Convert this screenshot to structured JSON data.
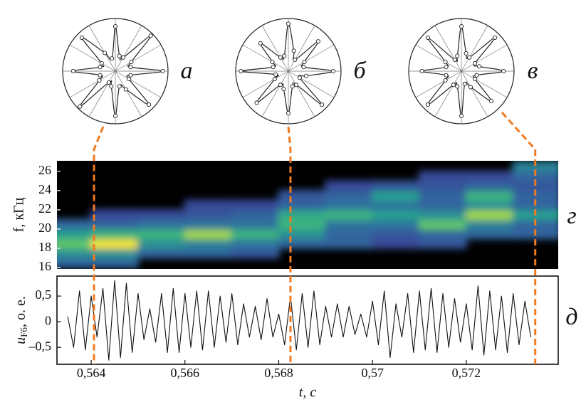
{
  "chart_data": [
    {
      "type": "polar",
      "label": "а",
      "rlim": [
        0,
        1
      ],
      "color": "#222",
      "thetaticks": [
        0,
        30,
        60,
        90,
        120,
        150,
        180,
        210,
        240,
        270,
        300,
        330
      ],
      "theta": [
        0,
        15,
        30,
        45,
        60,
        75,
        90,
        105,
        120,
        135,
        150,
        165,
        180,
        195,
        210,
        225,
        240,
        255,
        270,
        285,
        300,
        315,
        330,
        345
      ],
      "values": [
        0.9,
        0.3,
        0.35,
        0.95,
        0.3,
        0.3,
        0.85,
        0.25,
        0.4,
        0.9,
        0.3,
        0.3,
        0.8,
        0.3,
        0.35,
        0.95,
        0.25,
        0.3,
        0.85,
        0.3,
        0.4,
        0.9,
        0.3,
        0.3
      ]
    },
    {
      "type": "polar",
      "label": "б",
      "rlim": [
        0,
        1
      ],
      "color": "#222",
      "thetaticks": [
        0,
        30,
        60,
        90,
        120,
        150,
        180,
        210,
        240,
        270,
        300,
        330
      ],
      "theta": [
        0,
        15,
        30,
        45,
        60,
        75,
        90,
        105,
        120,
        135,
        150,
        165,
        180,
        195,
        210,
        225,
        240,
        255,
        270,
        285,
        300,
        315,
        330,
        345
      ],
      "values": [
        0.85,
        0.3,
        0.35,
        0.8,
        0.25,
        0.4,
        0.9,
        0.3,
        0.3,
        0.75,
        0.35,
        0.3,
        0.9,
        0.25,
        0.3,
        0.85,
        0.3,
        0.35,
        0.8,
        0.3,
        0.3,
        0.9,
        0.25,
        0.35
      ]
    },
    {
      "type": "polar",
      "label": "в",
      "rlim": [
        0,
        1
      ],
      "color": "#222",
      "thetaticks": [
        0,
        30,
        60,
        90,
        120,
        150,
        180,
        210,
        240,
        270,
        300,
        330
      ],
      "theta": [
        0,
        15,
        30,
        45,
        60,
        75,
        90,
        105,
        120,
        135,
        150,
        165,
        180,
        195,
        210,
        225,
        240,
        255,
        270,
        285,
        300,
        315,
        330,
        345
      ],
      "values": [
        0.8,
        0.35,
        0.3,
        0.9,
        0.3,
        0.35,
        0.85,
        0.3,
        0.25,
        0.9,
        0.35,
        0.3,
        0.75,
        0.3,
        0.35,
        0.9,
        0.3,
        0.3,
        0.85,
        0.25,
        0.35,
        0.8,
        0.3,
        0.3
      ]
    },
    {
      "type": "heatmap",
      "label": "г",
      "ylabel": "f, кГц",
      "xlim": [
        0.56327,
        0.57396
      ],
      "ylim": [
        15.85,
        27.1
      ],
      "yticks": [
        16,
        18,
        20,
        22,
        24,
        26
      ],
      "x": [
        0.5635,
        0.5645,
        0.5655,
        0.5665,
        0.5675,
        0.5685,
        0.5695,
        0.5705,
        0.5715,
        0.5725,
        0.5735
      ],
      "y": [
        16.5,
        17.5,
        18.5,
        19.5,
        20.5,
        21.5,
        22.5,
        23.5,
        24.5,
        25.5,
        26.5
      ],
      "z": [
        [
          0.3,
          0.3,
          null,
          null,
          null,
          null,
          null,
          null,
          null,
          null,
          null
        ],
        [
          0.45,
          0.45,
          0.3,
          0.3,
          0.25,
          null,
          null,
          null,
          null,
          null,
          null
        ],
        [
          0.7,
          1.0,
          0.45,
          0.4,
          0.35,
          0.3,
          0.3,
          0.2,
          0.25,
          null,
          null
        ],
        [
          0.5,
          0.6,
          0.6,
          0.8,
          0.6,
          0.45,
          0.3,
          0.25,
          0.3,
          0.3,
          0.3
        ],
        [
          0.3,
          0.3,
          0.35,
          0.35,
          0.35,
          0.6,
          0.35,
          0.35,
          0.7,
          0.4,
          0.3
        ],
        [
          null,
          0.2,
          0.2,
          0.25,
          0.3,
          0.55,
          0.6,
          0.5,
          0.45,
          0.8,
          0.5
        ],
        [
          null,
          null,
          null,
          0.2,
          0.2,
          0.3,
          0.35,
          0.35,
          0.3,
          0.45,
          0.3
        ],
        [
          null,
          null,
          null,
          null,
          null,
          0.25,
          0.3,
          0.5,
          0.3,
          0.6,
          0.3
        ],
        [
          null,
          null,
          null,
          null,
          null,
          null,
          0.2,
          0.25,
          0.25,
          0.3,
          0.25
        ],
        [
          null,
          null,
          null,
          null,
          null,
          null,
          null,
          null,
          0.2,
          0.2,
          0.3
        ],
        [
          null,
          null,
          null,
          null,
          null,
          null,
          null,
          null,
          null,
          null,
          0.4
        ]
      ],
      "zlim": [
        0,
        1
      ],
      "colormap": [
        "#3a1466",
        "#3b3f96",
        "#2f6fa0",
        "#27a08f",
        "#4cc172",
        "#b6dc3c",
        "#f4e52a"
      ],
      "background": "#000000"
    },
    {
      "type": "line",
      "label": "д",
      "ylabel": {
        "main": "u",
        "sub": "Fб",
        "rest": ", о. е."
      },
      "xlabel": "t, с",
      "xlim": [
        0.56327,
        0.57396
      ],
      "ylim": [
        -0.83,
        0.89
      ],
      "yticks": [
        {
          "value": 0.5,
          "label": "0,5"
        },
        0,
        {
          "value": -0.5,
          "label": "–0,5"
        }
      ],
      "xticks": [
        {
          "value": 0.564,
          "label": "0,564"
        },
        {
          "value": 0.566,
          "label": "0,566"
        },
        {
          "value": 0.568,
          "label": "0,568"
        },
        {
          "value": 0.57,
          "label": "0,57"
        },
        {
          "value": 0.572,
          "label": "0,572"
        }
      ],
      "color": "#111",
      "x": [
        0.5635,
        0.563625,
        0.56375,
        0.563875,
        0.564,
        0.564125,
        0.56425,
        0.564375,
        0.5645,
        0.564625,
        0.56475,
        0.564875,
        0.565,
        0.565125,
        0.56525,
        0.565375,
        0.5655,
        0.565625,
        0.56575,
        0.565875,
        0.566,
        0.566125,
        0.56625,
        0.566375,
        0.5665,
        0.566625,
        0.56675,
        0.566875,
        0.567,
        0.567125,
        0.56725,
        0.567375,
        0.5675,
        0.567625,
        0.56775,
        0.567875,
        0.568,
        0.568125,
        0.56825,
        0.568375,
        0.5685,
        0.568625,
        0.56875,
        0.568875,
        0.569,
        0.569125,
        0.56925,
        0.569375,
        0.5695,
        0.569625,
        0.56975,
        0.569875,
        0.57,
        0.570125,
        0.57025,
        0.570375,
        0.5705,
        0.570625,
        0.57075,
        0.570875,
        0.571,
        0.571125,
        0.57125,
        0.571375,
        0.5715,
        0.571625,
        0.57175,
        0.571875,
        0.572,
        0.572125,
        0.57225,
        0.572375,
        0.5725,
        0.572625,
        0.57275,
        0.572875,
        0.573,
        0.573125,
        0.57325,
        0.573375
      ],
      "values": [
        0.1,
        -0.5,
        0.6,
        -0.55,
        0.5,
        -0.3,
        0.65,
        -0.75,
        0.8,
        -0.7,
        0.75,
        -0.6,
        0.55,
        -0.35,
        0.25,
        -0.4,
        0.55,
        -0.6,
        0.65,
        -0.6,
        0.55,
        -0.5,
        0.6,
        -0.55,
        0.6,
        -0.5,
        0.5,
        -0.4,
        0.55,
        -0.45,
        0.35,
        -0.3,
        0.3,
        -0.35,
        0.45,
        -0.3,
        0.15,
        -0.45,
        0.5,
        -0.55,
        0.55,
        -0.5,
        0.6,
        -0.45,
        0.3,
        -0.3,
        0.35,
        -0.3,
        0.3,
        -0.25,
        0.15,
        -0.3,
        0.4,
        -0.45,
        0.6,
        -0.7,
        0.35,
        -0.3,
        0.55,
        -0.6,
        0.6,
        -0.55,
        0.65,
        -0.6,
        0.55,
        -0.5,
        0.45,
        -0.4,
        0.35,
        -0.55,
        0.7,
        -0.65,
        0.6,
        -0.55,
        0.5,
        -0.6,
        0.55,
        -0.45,
        0.4,
        -0.3
      ],
      "markers": [
        0.56406,
        0.56825,
        0.57347
      ],
      "marker_color": "#f07a20"
    }
  ]
}
